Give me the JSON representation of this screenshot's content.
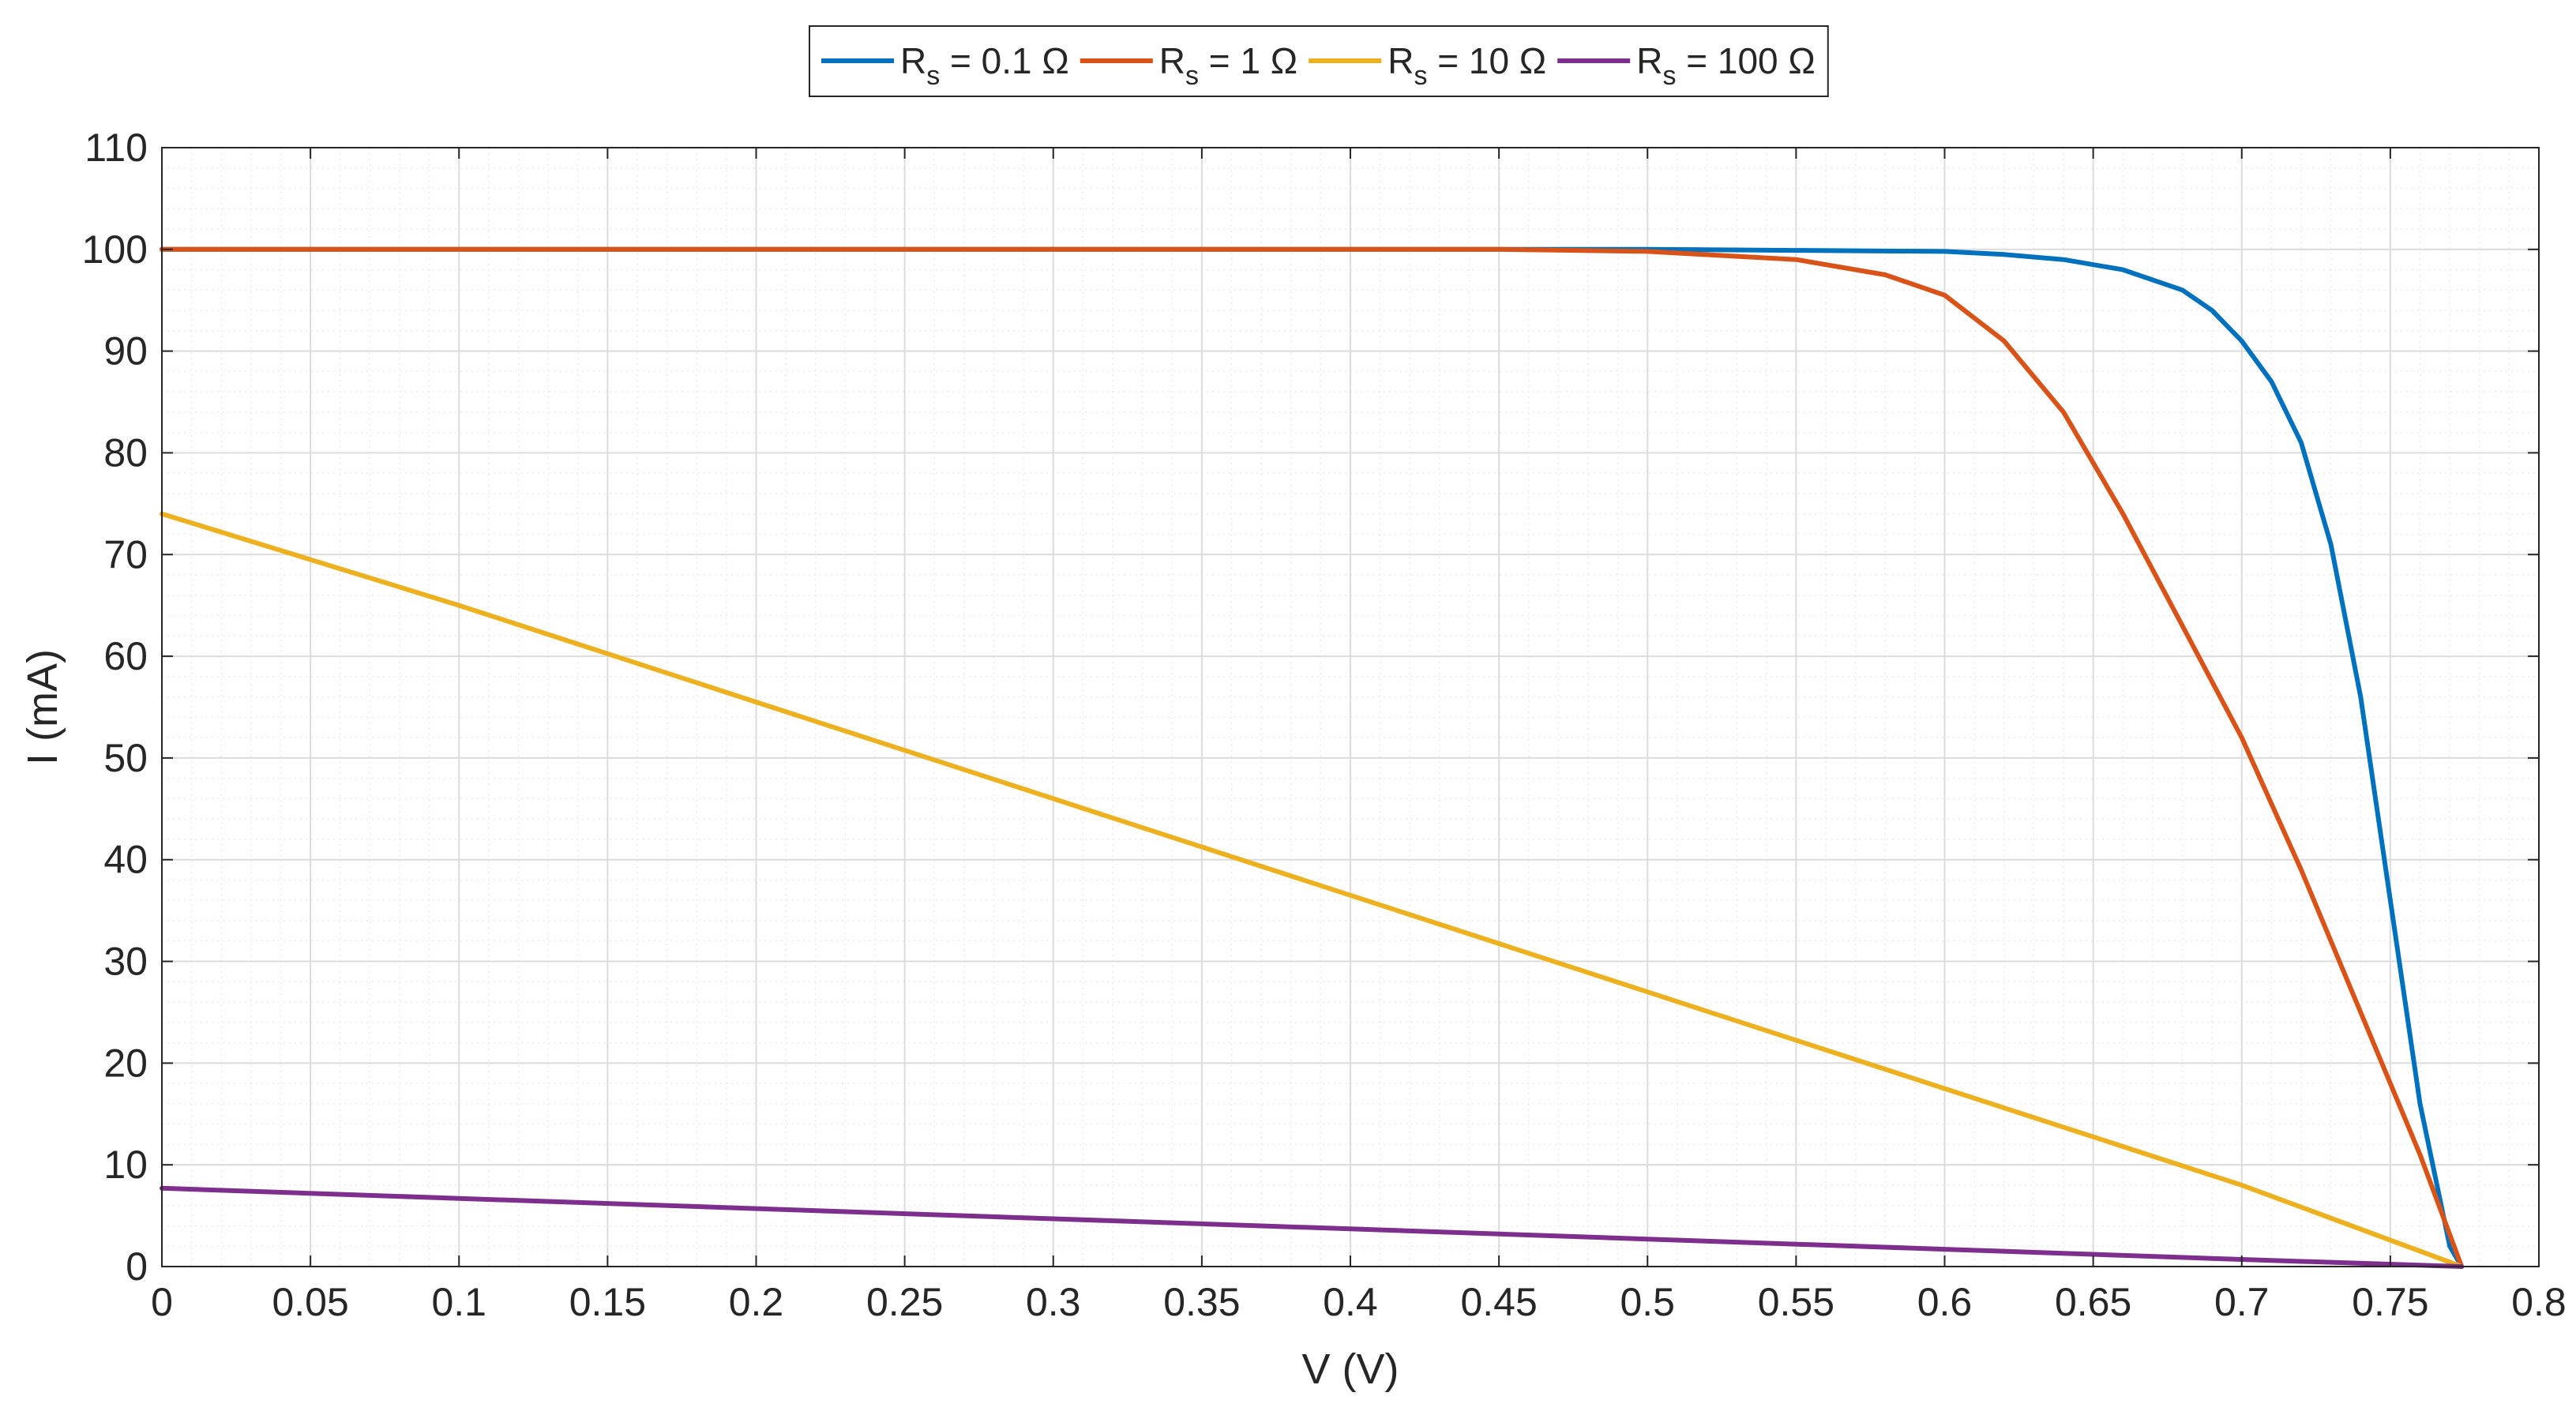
{
  "chart_data": {
    "type": "line",
    "xlabel": "V (V)",
    "ylabel": "I (mA)",
    "xlim": [
      0,
      0.8
    ],
    "ylim": [
      0,
      110
    ],
    "x_ticks": [
      "0",
      "0.05",
      "0.1",
      "0.15",
      "0.2",
      "0.25",
      "0.3",
      "0.35",
      "0.4",
      "0.45",
      "0.5",
      "0.55",
      "0.6",
      "0.65",
      "0.7",
      "0.75",
      "0.8"
    ],
    "y_ticks": [
      "0",
      "10",
      "20",
      "30",
      "40",
      "50",
      "60",
      "70",
      "80",
      "90",
      "100",
      "110"
    ],
    "grid": true,
    "minor_grid": true,
    "legend_position": "top-center-outside",
    "legend_orientation": "horizontal",
    "series": [
      {
        "name": "R_s = 0.1 Ω",
        "label_main": "R",
        "label_sub": "s",
        "label_rest": " = 0.1 Ω",
        "color": "#0072BD",
        "x": [
          0,
          0.1,
          0.2,
          0.3,
          0.4,
          0.5,
          0.55,
          0.6,
          0.62,
          0.64,
          0.66,
          0.68,
          0.69,
          0.7,
          0.71,
          0.72,
          0.73,
          0.74,
          0.75,
          0.76,
          0.77,
          0.774
        ],
        "y": [
          100,
          100,
          100,
          100,
          100,
          100,
          99.9,
          99.8,
          99.5,
          99,
          98,
          96,
          94,
          91,
          87,
          81,
          71,
          56,
          36,
          16,
          2,
          0
        ]
      },
      {
        "name": "R_s = 1 Ω",
        "label_main": "R",
        "label_sub": "s",
        "label_rest": " = 1 Ω",
        "color": "#D95319",
        "x": [
          0,
          0.1,
          0.2,
          0.3,
          0.4,
          0.45,
          0.5,
          0.55,
          0.58,
          0.6,
          0.62,
          0.64,
          0.66,
          0.68,
          0.7,
          0.72,
          0.74,
          0.76,
          0.774
        ],
        "y": [
          100,
          100,
          100,
          100,
          100,
          100,
          99.8,
          99,
          97.5,
          95.5,
          91,
          84,
          74,
          63,
          52,
          39,
          25,
          11,
          0
        ]
      },
      {
        "name": "R_s = 10 Ω",
        "label_main": "R",
        "label_sub": "s",
        "label_rest": " = 10 Ω",
        "color": "#EDB120",
        "x": [
          0,
          0.1,
          0.2,
          0.3,
          0.4,
          0.5,
          0.6,
          0.7,
          0.774
        ],
        "y": [
          74,
          65,
          55.5,
          46,
          36.5,
          27,
          17.5,
          8,
          0
        ]
      },
      {
        "name": "R_s = 100 Ω",
        "label_main": "R",
        "label_sub": "s",
        "label_rest": " = 100 Ω",
        "color": "#7E2F8E",
        "x": [
          0,
          0.1,
          0.2,
          0.3,
          0.4,
          0.5,
          0.6,
          0.7,
          0.774
        ],
        "y": [
          7.7,
          6.7,
          5.7,
          4.7,
          3.7,
          2.7,
          1.7,
          0.7,
          0
        ]
      }
    ]
  }
}
